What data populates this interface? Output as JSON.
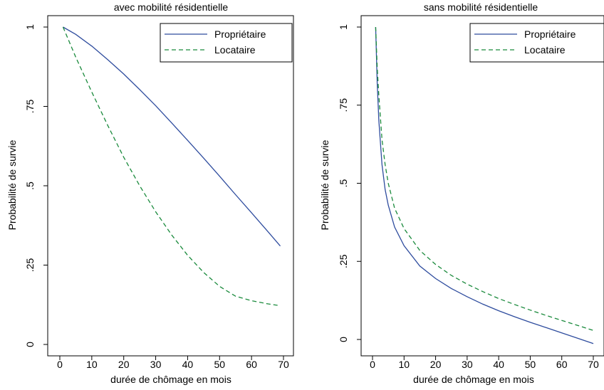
{
  "chart_data": [
    {
      "type": "line",
      "title": "avec mobilité résidentielle",
      "xlabel": "durée de chômage en mois",
      "ylabel": "Probabilité de survie",
      "xlim": [
        0,
        70
      ],
      "ylim": [
        0,
        1
      ],
      "x_ticks": [
        0,
        10,
        20,
        30,
        40,
        50,
        60,
        70
      ],
      "x_tick_labels": [
        "0",
        "10",
        "20",
        "30",
        "40",
        "50",
        "60",
        "70"
      ],
      "y_ticks": [
        0,
        0.25,
        0.5,
        0.75,
        1
      ],
      "y_tick_labels": [
        "0",
        ".25",
        ".5",
        ".75",
        "1"
      ],
      "legend_position": "top-right",
      "x": [
        1,
        5,
        10,
        15,
        20,
        25,
        30,
        35,
        40,
        45,
        50,
        55,
        60,
        65,
        69
      ],
      "series": [
        {
          "name": "Propriétaire",
          "color": "#2e4c9e",
          "dash": "solid",
          "values": [
            1.0,
            0.977,
            0.94,
            0.897,
            0.852,
            0.803,
            0.752,
            0.698,
            0.643,
            0.587,
            0.53,
            0.472,
            0.415,
            0.357,
            0.31
          ]
        },
        {
          "name": "Locataire",
          "color": "#1a8a3c",
          "dash": "dashed",
          "values": [
            1.0,
            0.905,
            0.795,
            0.69,
            0.59,
            0.5,
            0.418,
            0.345,
            0.281,
            0.227,
            0.183,
            0.152,
            0.138,
            0.128,
            0.122
          ]
        }
      ]
    },
    {
      "type": "line",
      "title": "sans mobilité résidentielle",
      "xlabel": "durée de chômage en mois",
      "ylabel": "Probabilité de survie",
      "xlim": [
        -1.5,
        70
      ],
      "ylim": [
        0,
        1
      ],
      "x_ticks": [
        0,
        10,
        20,
        30,
        40,
        50,
        60,
        70
      ],
      "x_tick_labels": [
        "0",
        "10",
        "20",
        "30",
        "40",
        "50",
        "60",
        "70"
      ],
      "y_ticks": [
        0,
        0.25,
        0.5,
        0.75,
        1
      ],
      "y_tick_labels": [
        "0",
        ".25",
        ".5",
        ".75",
        "1"
      ],
      "legend_position": "top-right",
      "x": [
        1,
        1.5,
        2,
        3,
        4,
        5,
        7,
        10,
        15,
        20,
        25,
        30,
        35,
        40,
        45,
        50,
        55,
        60,
        65,
        70
      ],
      "series": [
        {
          "name": "Propriétaire",
          "color": "#2e4c9e",
          "dash": "solid",
          "values": [
            1.0,
            0.82,
            0.7,
            0.56,
            0.48,
            0.43,
            0.36,
            0.3,
            0.235,
            0.195,
            0.163,
            0.137,
            0.113,
            0.092,
            0.073,
            0.055,
            0.038,
            0.021,
            0.004,
            -0.013
          ]
        },
        {
          "name": "Locataire",
          "color": "#1a8a3c",
          "dash": "dashed",
          "values": [
            1.0,
            0.87,
            0.78,
            0.64,
            0.56,
            0.5,
            0.42,
            0.355,
            0.285,
            0.24,
            0.205,
            0.177,
            0.153,
            0.131,
            0.112,
            0.094,
            0.077,
            0.061,
            0.045,
            0.029
          ]
        }
      ]
    }
  ]
}
